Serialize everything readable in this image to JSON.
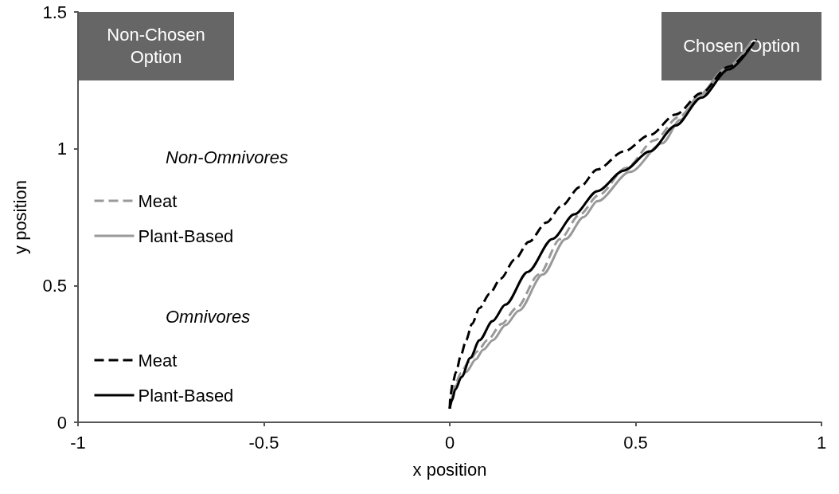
{
  "chart_data": {
    "type": "line",
    "xlabel": "x position",
    "ylabel": "y position",
    "xlim": [
      -1,
      1
    ],
    "xticks": [
      -1,
      -0.5,
      0,
      0.5,
      1
    ],
    "ylim": [
      0,
      1.5
    ],
    "yticks": [
      0,
      0.5,
      1,
      1.5
    ],
    "grid": false,
    "legend": "left",
    "marker": "none",
    "annotations": [
      "Non-Chosen Option",
      "Chosen Option",
      "Non-Omnivores",
      "Omnivores"
    ],
    "series": [
      {
        "name": "Meat",
        "color": "#999999",
        "line_style": "dashed",
        "x": [
          0,
          0.005,
          0.015,
          0.03,
          0.05,
          0.075,
          0.101,
          0.14,
          0.179,
          0.24,
          0.297,
          0.35,
          0.4,
          0.475,
          0.55,
          0.615,
          0.68,
          0.745,
          0.81
        ],
        "values": [
          0.05,
          0.1,
          0.14,
          0.18,
          0.22,
          0.26,
          0.3,
          0.36,
          0.417,
          0.54,
          0.67,
          0.76,
          0.83,
          0.93,
          1.03,
          1.115,
          1.2,
          1.29,
          1.39
        ]
      },
      {
        "name": "Plant-Based",
        "color": "#999999",
        "line_style": "solid",
        "x": [
          0,
          0.005,
          0.015,
          0.028,
          0.044,
          0.07,
          0.09,
          0.116,
          0.15,
          0.186,
          0.25,
          0.312,
          0.36,
          0.397,
          0.485,
          0.572,
          0.62,
          0.67,
          0.74,
          0.808
        ],
        "values": [
          0.05,
          0.09,
          0.13,
          0.16,
          0.184,
          0.23,
          0.265,
          0.3,
          0.355,
          0.408,
          0.54,
          0.67,
          0.75,
          0.808,
          0.915,
          1.02,
          1.105,
          1.195,
          1.29,
          1.385
        ]
      },
      {
        "name": "Meat",
        "color": "#000000",
        "line_style": "dashed",
        "x": [
          0,
          0.002,
          0.008,
          0.017,
          0.03,
          0.044,
          0.06,
          0.08,
          0.107,
          0.137,
          0.175,
          0.213,
          0.26,
          0.3,
          0.35,
          0.397,
          0.468,
          0.538,
          0.608,
          0.677,
          0.75,
          0.825
        ],
        "values": [
          0.05,
          0.1,
          0.145,
          0.184,
          0.245,
          0.3,
          0.36,
          0.417,
          0.47,
          0.525,
          0.595,
          0.66,
          0.73,
          0.79,
          0.86,
          0.924,
          0.99,
          1.05,
          1.125,
          1.204,
          1.3,
          1.4
        ]
      },
      {
        "name": "Plant-Based",
        "color": "#000000",
        "line_style": "solid",
        "x": [
          0,
          0.006,
          0.015,
          0.032,
          0.055,
          0.08,
          0.115,
          0.15,
          0.21,
          0.276,
          0.335,
          0.397,
          0.468,
          0.538,
          0.608,
          0.677,
          0.75,
          0.819
        ],
        "values": [
          0.05,
          0.08,
          0.12,
          0.166,
          0.235,
          0.3,
          0.37,
          0.43,
          0.55,
          0.67,
          0.76,
          0.845,
          0.92,
          0.99,
          1.085,
          1.187,
          1.29,
          1.39
        ]
      }
    ]
  }
}
